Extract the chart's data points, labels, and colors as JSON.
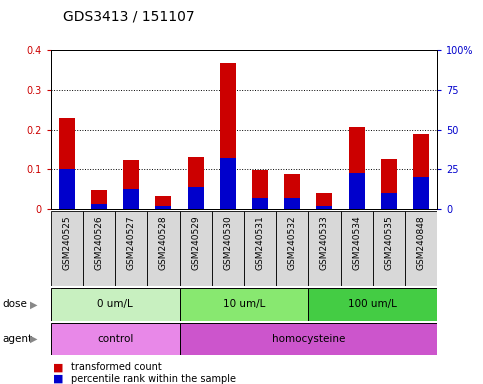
{
  "title": "GDS3413 / 151107",
  "samples": [
    "GSM240525",
    "GSM240526",
    "GSM240527",
    "GSM240528",
    "GSM240529",
    "GSM240530",
    "GSM240531",
    "GSM240532",
    "GSM240533",
    "GSM240534",
    "GSM240535",
    "GSM240848"
  ],
  "red_values": [
    0.23,
    0.048,
    0.123,
    0.033,
    0.132,
    0.366,
    0.098,
    0.088,
    0.04,
    0.207,
    0.126,
    0.19
  ],
  "blue_pct": [
    25,
    3,
    13,
    2,
    14,
    32,
    7,
    7,
    2,
    23,
    10,
    20
  ],
  "ylim_left": [
    0,
    0.4
  ],
  "ylim_right": [
    0,
    100
  ],
  "yticks_left": [
    0,
    0.1,
    0.2,
    0.3,
    0.4
  ],
  "yticks_right": [
    0,
    25,
    50,
    75,
    100
  ],
  "ytick_labels_left": [
    "0",
    "0.1",
    "0.2",
    "0.3",
    "0.4"
  ],
  "ytick_labels_right": [
    "0",
    "25",
    "50",
    "75",
    "100%"
  ],
  "dose_groups": [
    {
      "label": "0 um/L",
      "start": 0,
      "end": 4,
      "color": "#c8f0c0"
    },
    {
      "label": "10 um/L",
      "start": 4,
      "end": 8,
      "color": "#88e870"
    },
    {
      "label": "100 um/L",
      "start": 8,
      "end": 12,
      "color": "#44cc44"
    }
  ],
  "agent_groups": [
    {
      "label": "control",
      "start": 0,
      "end": 4,
      "color": "#e888e8"
    },
    {
      "label": "homocysteine",
      "start": 4,
      "end": 12,
      "color": "#cc55cc"
    }
  ],
  "red_color": "#cc0000",
  "blue_color": "#0000cc",
  "bar_width": 0.5,
  "dose_label": "dose",
  "agent_label": "agent",
  "legend_red": "transformed count",
  "legend_blue": "percentile rank within the sample",
  "title_fontsize": 10,
  "tick_fontsize": 7,
  "sample_fontsize": 6.5
}
